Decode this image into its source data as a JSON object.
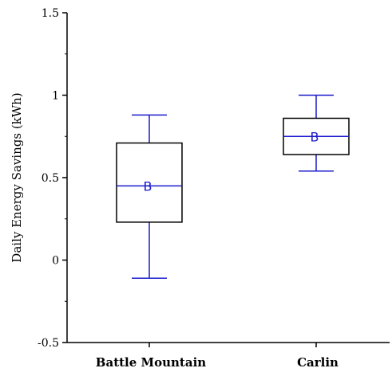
{
  "chart_data": {
    "type": "boxplot",
    "ylabel": "Daily Energy Savings (kWh)",
    "ylim": [
      -0.5,
      1.5
    ],
    "yticks": [
      -0.5,
      0,
      0.5,
      1,
      1.5
    ],
    "ytick_labels": [
      "-0.5",
      "0",
      "0.5",
      "1",
      "1.5"
    ],
    "median_color": "#1a1acc",
    "box_color": "#000000",
    "categories": [
      "Battle Mountain",
      "Carlin"
    ],
    "boxes": [
      {
        "category": "Battle Mountain",
        "min": -0.11,
        "q1": 0.23,
        "median": 0.45,
        "q3": 0.71,
        "max": 0.88,
        "group_letter": "B"
      },
      {
        "category": "Carlin",
        "min": 0.54,
        "q1": 0.64,
        "median": 0.75,
        "q3": 0.86,
        "max": 1.0,
        "group_letter": "B"
      }
    ]
  }
}
